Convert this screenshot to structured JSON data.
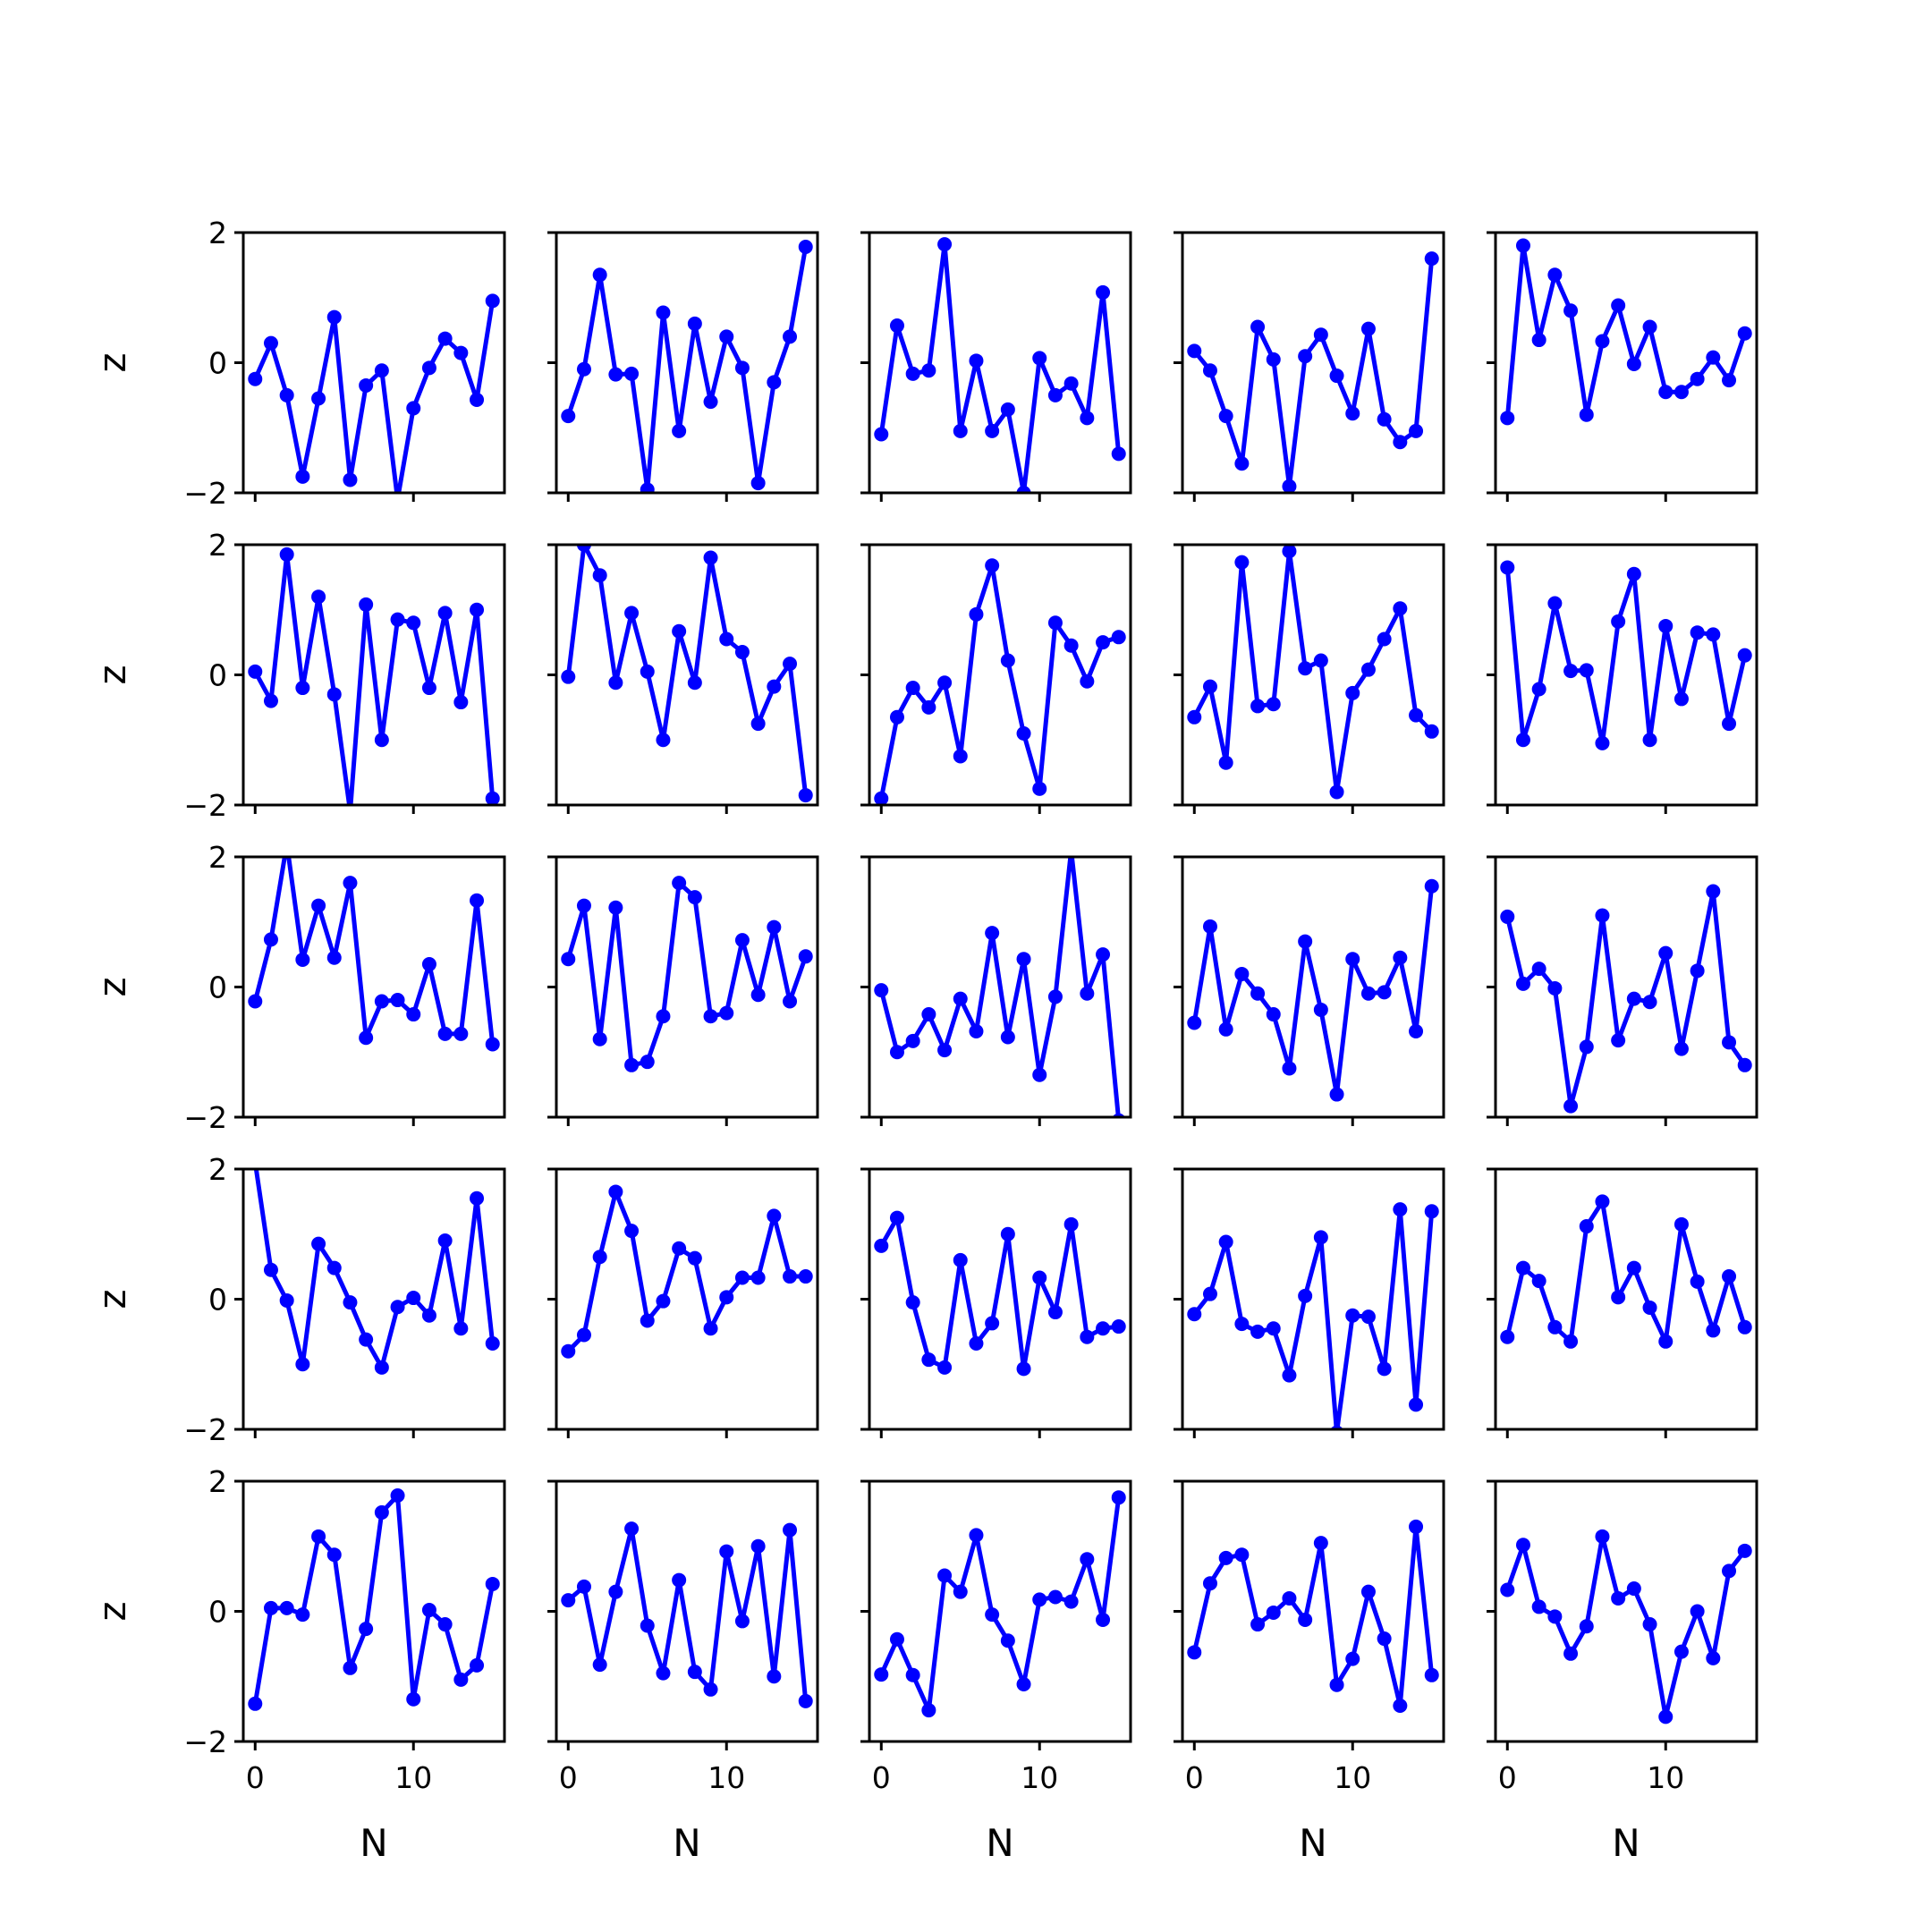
{
  "chart_data": {
    "type": "line",
    "layout": "5x5 grid of subplots",
    "xlabel": "N",
    "ylabel": "z",
    "xlim": [
      -0.75,
      15.75
    ],
    "ylim": [
      -2,
      2
    ],
    "x_ticks": [
      0,
      10
    ],
    "y_ticks": [
      -2,
      0,
      2
    ],
    "y_tick_labels": [
      "−2",
      "0",
      "2"
    ],
    "x": [
      0,
      1,
      2,
      3,
      4,
      5,
      6,
      7,
      8,
      9,
      10,
      11,
      12,
      13,
      14,
      15
    ],
    "color": "#0000ff",
    "grid": false,
    "subplots": [
      {
        "values": [
          -0.25,
          0.3,
          -0.5,
          -1.75,
          -0.55,
          0.7,
          -1.8,
          -0.35,
          -0.12,
          -2.1,
          -0.7,
          -0.08,
          0.37,
          0.15,
          -0.57,
          0.95
        ]
      },
      {
        "values": [
          -0.82,
          -0.1,
          1.35,
          -0.18,
          -0.17,
          -1.95,
          0.77,
          -1.05,
          0.6,
          -0.6,
          0.4,
          -0.08,
          -1.85,
          -0.3,
          0.4,
          1.78
        ]
      },
      {
        "values": [
          -1.1,
          0.57,
          -0.17,
          -0.12,
          1.82,
          -1.05,
          0.03,
          -1.05,
          -0.72,
          -2.0,
          0.07,
          -0.5,
          -0.32,
          -0.85,
          1.08,
          -1.4
        ]
      },
      {
        "values": [
          0.18,
          -0.12,
          -0.82,
          -1.55,
          0.55,
          0.05,
          -1.9,
          0.1,
          0.43,
          -0.2,
          -0.78,
          0.52,
          -0.87,
          -1.22,
          -1.05,
          1.6
        ]
      },
      {
        "values": [
          -0.85,
          1.8,
          0.35,
          1.35,
          0.8,
          -0.8,
          0.33,
          0.88,
          -0.02,
          0.55,
          -0.45,
          -0.45,
          -0.25,
          0.08,
          -0.27,
          0.45
        ]
      },
      {
        "values": [
          0.05,
          -0.4,
          1.85,
          -0.2,
          1.2,
          -0.3,
          -2.1,
          1.08,
          -1.0,
          0.85,
          0.8,
          -0.2,
          0.95,
          -0.42,
          1.0,
          -1.9
        ]
      },
      {
        "values": [
          -0.03,
          2.0,
          1.53,
          -0.12,
          0.95,
          0.05,
          -1.0,
          0.67,
          -0.12,
          1.8,
          0.55,
          0.35,
          -0.75,
          -0.18,
          0.17,
          -1.85
        ]
      },
      {
        "values": [
          -1.9,
          -0.65,
          -0.2,
          -0.5,
          -0.12,
          -1.25,
          0.93,
          1.68,
          0.22,
          -0.9,
          -1.75,
          0.8,
          0.45,
          -0.1,
          0.5,
          0.58
        ]
      },
      {
        "values": [
          -0.65,
          -0.18,
          -1.35,
          1.73,
          -0.48,
          -0.45,
          1.9,
          0.1,
          0.22,
          -1.8,
          -0.28,
          0.08,
          0.55,
          1.02,
          -0.62,
          -0.87
        ]
      },
      {
        "values": [
          1.65,
          -1.0,
          -0.22,
          1.1,
          0.06,
          0.07,
          -1.05,
          0.82,
          1.55,
          -1.0,
          0.75,
          -0.37,
          0.65,
          0.62,
          -0.75,
          0.3
        ]
      },
      {
        "values": [
          -0.22,
          0.73,
          2.2,
          0.42,
          1.25,
          0.45,
          1.6,
          -0.78,
          -0.22,
          -0.2,
          -0.42,
          0.35,
          -0.72,
          -0.72,
          1.33,
          -0.88
        ]
      },
      {
        "values": [
          0.43,
          1.25,
          -0.8,
          1.22,
          -1.2,
          -1.15,
          -0.45,
          1.6,
          1.38,
          -0.45,
          -0.4,
          0.72,
          -0.12,
          0.92,
          -0.22,
          0.47
        ]
      },
      {
        "values": [
          -0.05,
          -1.0,
          -0.83,
          -0.42,
          -0.97,
          -0.18,
          -0.68,
          0.83,
          -0.77,
          0.43,
          -1.35,
          -0.15,
          2.1,
          -0.1,
          0.5,
          -2.05
        ]
      },
      {
        "values": [
          -0.55,
          0.93,
          -0.65,
          0.2,
          -0.1,
          -0.42,
          -1.25,
          0.7,
          -0.35,
          -1.65,
          0.43,
          -0.1,
          -0.08,
          0.45,
          -0.68,
          1.55
        ]
      },
      {
        "values": [
          1.08,
          0.05,
          0.28,
          -0.02,
          -1.83,
          -0.92,
          1.1,
          -0.82,
          -0.18,
          -0.23,
          0.52,
          -0.95,
          0.25,
          1.47,
          -0.85,
          -1.2
        ]
      },
      {
        "values": [
          2.1,
          0.45,
          -0.02,
          -1.0,
          0.85,
          0.48,
          -0.05,
          -0.62,
          -1.05,
          -0.12,
          0.02,
          -0.25,
          0.9,
          -0.45,
          1.55,
          -0.68
        ]
      },
      {
        "values": [
          -0.8,
          -0.55,
          0.65,
          1.65,
          1.05,
          -0.33,
          -0.03,
          0.78,
          0.63,
          -0.45,
          0.03,
          0.33,
          0.33,
          1.28,
          0.35,
          0.35
        ]
      },
      {
        "values": [
          0.82,
          1.25,
          -0.05,
          -0.93,
          -1.05,
          0.6,
          -0.68,
          -0.37,
          1.0,
          -1.07,
          0.33,
          -0.2,
          1.15,
          -0.58,
          -0.45,
          -0.42
        ]
      },
      {
        "values": [
          -0.23,
          0.08,
          0.88,
          -0.38,
          -0.5,
          -0.45,
          -1.17,
          0.05,
          0.95,
          -2.05,
          -0.25,
          -0.27,
          -1.07,
          1.38,
          -1.62,
          1.35
        ]
      },
      {
        "values": [
          -0.58,
          0.48,
          0.28,
          -0.43,
          -0.65,
          1.12,
          1.5,
          0.03,
          0.48,
          -0.13,
          -0.65,
          1.15,
          0.27,
          -0.48,
          0.35,
          -0.43
        ]
      },
      {
        "values": [
          -1.42,
          0.05,
          0.05,
          -0.05,
          1.15,
          0.87,
          -0.87,
          -0.27,
          1.52,
          1.78,
          -1.35,
          0.02,
          -0.2,
          -1.05,
          -0.83,
          0.42
        ]
      },
      {
        "values": [
          0.17,
          0.38,
          -0.82,
          0.3,
          1.27,
          -0.22,
          -0.95,
          0.48,
          -0.93,
          -1.2,
          0.92,
          -0.15,
          1.0,
          -1.0,
          1.25,
          -1.38
        ]
      },
      {
        "values": [
          -0.97,
          -0.43,
          -0.98,
          -1.52,
          0.55,
          0.3,
          1.17,
          -0.05,
          -0.45,
          -1.12,
          0.18,
          0.22,
          0.15,
          0.8,
          -0.13,
          1.75
        ]
      },
      {
        "values": [
          -0.63,
          0.43,
          0.82,
          0.87,
          -0.2,
          -0.02,
          0.2,
          -0.13,
          1.05,
          -1.13,
          -0.73,
          0.3,
          -0.42,
          -1.45,
          1.3,
          -0.98
        ]
      },
      {
        "values": [
          0.33,
          1.02,
          0.07,
          -0.08,
          -0.65,
          -0.23,
          1.15,
          0.2,
          0.35,
          -0.2,
          -1.62,
          -0.62,
          0.0,
          -0.72,
          0.62,
          0.93
        ]
      }
    ]
  }
}
